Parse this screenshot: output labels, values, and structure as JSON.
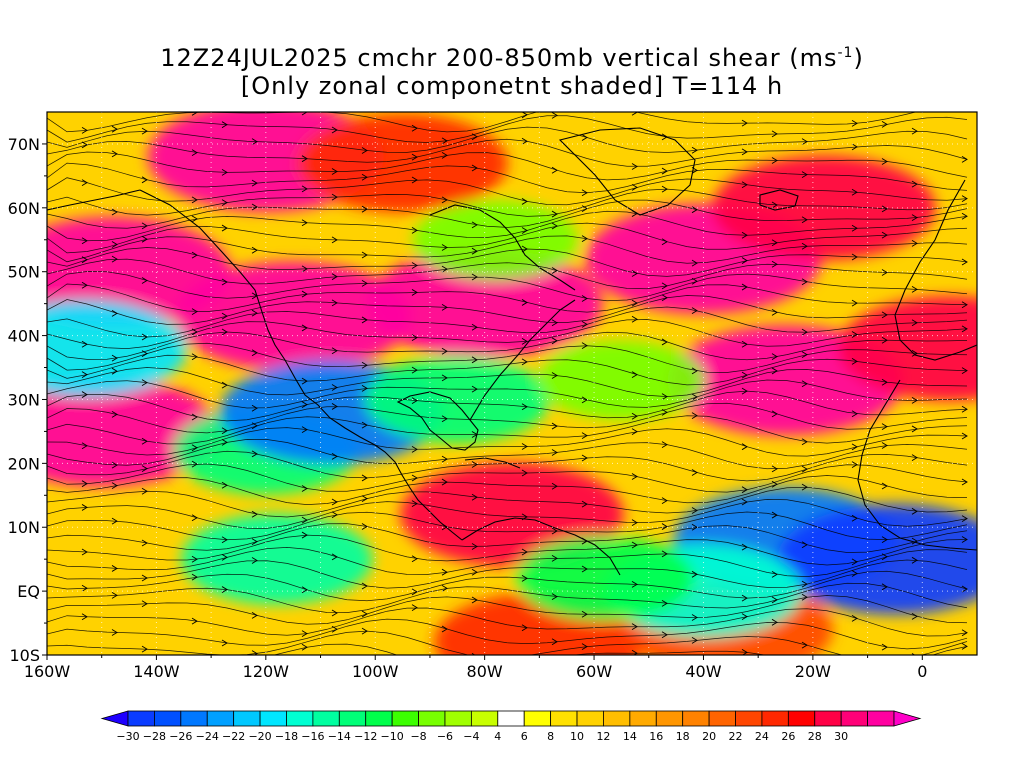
{
  "title": {
    "line1_main": "12Z24JUL2025 cmchr 200-850mb vertical shear (ms",
    "line1_sup": "-1",
    "line1_end": ")",
    "line2": "[Only zonal componetnt shaded] T=114 h"
  },
  "map": {
    "lon_range": [
      -160,
      10
    ],
    "lat_range": [
      -10,
      75
    ],
    "lat_labels": [
      {
        "lat": 70,
        "text": "70N"
      },
      {
        "lat": 60,
        "text": "60N"
      },
      {
        "lat": 50,
        "text": "50N"
      },
      {
        "lat": 40,
        "text": "40N"
      },
      {
        "lat": 30,
        "text": "30N"
      },
      {
        "lat": 20,
        "text": "20N"
      },
      {
        "lat": 10,
        "text": "10N"
      },
      {
        "lat": 0,
        "text": "EQ"
      },
      {
        "lat": -10,
        "text": "10S"
      }
    ],
    "lon_labels": [
      {
        "lon": -160,
        "text": "160W"
      },
      {
        "lon": -140,
        "text": "140W"
      },
      {
        "lon": -120,
        "text": "120W"
      },
      {
        "lon": -100,
        "text": "100W"
      },
      {
        "lon": -80,
        "text": "80W"
      },
      {
        "lon": -60,
        "text": "60W"
      },
      {
        "lon": -40,
        "text": "40W"
      },
      {
        "lon": -20,
        "text": "20W"
      },
      {
        "lon": 0,
        "text": "0"
      }
    ],
    "field_features": [
      {
        "name": "jet-north-pacific",
        "lon": -148,
        "lat": 50,
        "value": 30
      },
      {
        "name": "jet-high-lat-west",
        "lon": -120,
        "lat": 68,
        "value": 30
      },
      {
        "name": "jet-high-lat-east",
        "lon": -95,
        "lat": 67,
        "value": 22
      },
      {
        "name": "jet-main-west",
        "lon": -115,
        "lat": 43,
        "value": 30
      },
      {
        "name": "jet-main-center",
        "lon": -80,
        "lat": 45,
        "value": 30
      },
      {
        "name": "jet-main-east",
        "lon": -40,
        "lat": 52,
        "value": 30
      },
      {
        "name": "jet-ne-atlantic",
        "lon": -18,
        "lat": 60,
        "value": 26
      },
      {
        "name": "jet-subtropical-pacific",
        "lon": -150,
        "lat": 25,
        "value": 30
      },
      {
        "name": "jet-subtropical-atlantic",
        "lon": -25,
        "lat": 33,
        "value": 30
      },
      {
        "name": "jet-europe",
        "lon": 5,
        "lat": 38,
        "value": 26
      },
      {
        "name": "caribbean-max",
        "lon": -75,
        "lat": 12,
        "value": 26
      },
      {
        "name": "southern-band",
        "lon": -70,
        "lat": -8,
        "value": 22
      },
      {
        "name": "southeast-band",
        "lon": -35,
        "lat": -6,
        "value": 20
      },
      {
        "name": "easterly-pacific-west",
        "lon": -153,
        "lat": 38,
        "value": -20
      },
      {
        "name": "easterly-pacific-center",
        "lon": -120,
        "lat": 22,
        "value": -14
      },
      {
        "name": "easterly-tropical-pacific",
        "lon": -118,
        "lat": 5,
        "value": -16
      },
      {
        "name": "easterly-mexico",
        "lon": -108,
        "lat": 28,
        "value": -26
      },
      {
        "name": "easterly-gulf",
        "lon": -85,
        "lat": 30,
        "value": -14
      },
      {
        "name": "easterly-atlantic-ridge",
        "lon": -55,
        "lat": 33,
        "value": -8
      },
      {
        "name": "easterly-canada",
        "lon": -78,
        "lat": 55,
        "value": -8
      },
      {
        "name": "easterly-tropical-atlantic",
        "lon": -25,
        "lat": 8,
        "value": -26
      },
      {
        "name": "easterly-africa",
        "lon": -5,
        "lat": 5,
        "value": -30
      },
      {
        "name": "easterly-south-atlantic",
        "lon": -40,
        "lat": 0,
        "value": -18
      },
      {
        "name": "easterly-amazon",
        "lon": -58,
        "lat": 2,
        "value": -12
      }
    ]
  },
  "colorbar": {
    "colors": [
      "#1e00ff",
      "#0a3cff",
      "#0050ff",
      "#0078ff",
      "#00a0ff",
      "#00c8ff",
      "#00e6ff",
      "#00ffd2",
      "#00ffa0",
      "#00ff78",
      "#00ff4b",
      "#3cff00",
      "#78ff00",
      "#a0ff00",
      "#c8ff00",
      "#ffffff",
      "#ffff00",
      "#ffe100",
      "#ffd200",
      "#ffbe00",
      "#ffaa00",
      "#ff9600",
      "#ff8200",
      "#ff6400",
      "#ff4600",
      "#ff2800",
      "#ff0000",
      "#ff0046",
      "#ff0078",
      "#ff00a0",
      "#ff00c8"
    ],
    "labels": [
      "-30",
      "-28",
      "-26",
      "-24",
      "-22",
      "-20",
      "-18",
      "-16",
      "-14",
      "-12",
      "-10",
      "-8",
      "-6",
      "-4",
      "4",
      "6",
      "8",
      "10",
      "12",
      "14",
      "16",
      "18",
      "20",
      "22",
      "24",
      "26",
      "28",
      "30"
    ]
  }
}
